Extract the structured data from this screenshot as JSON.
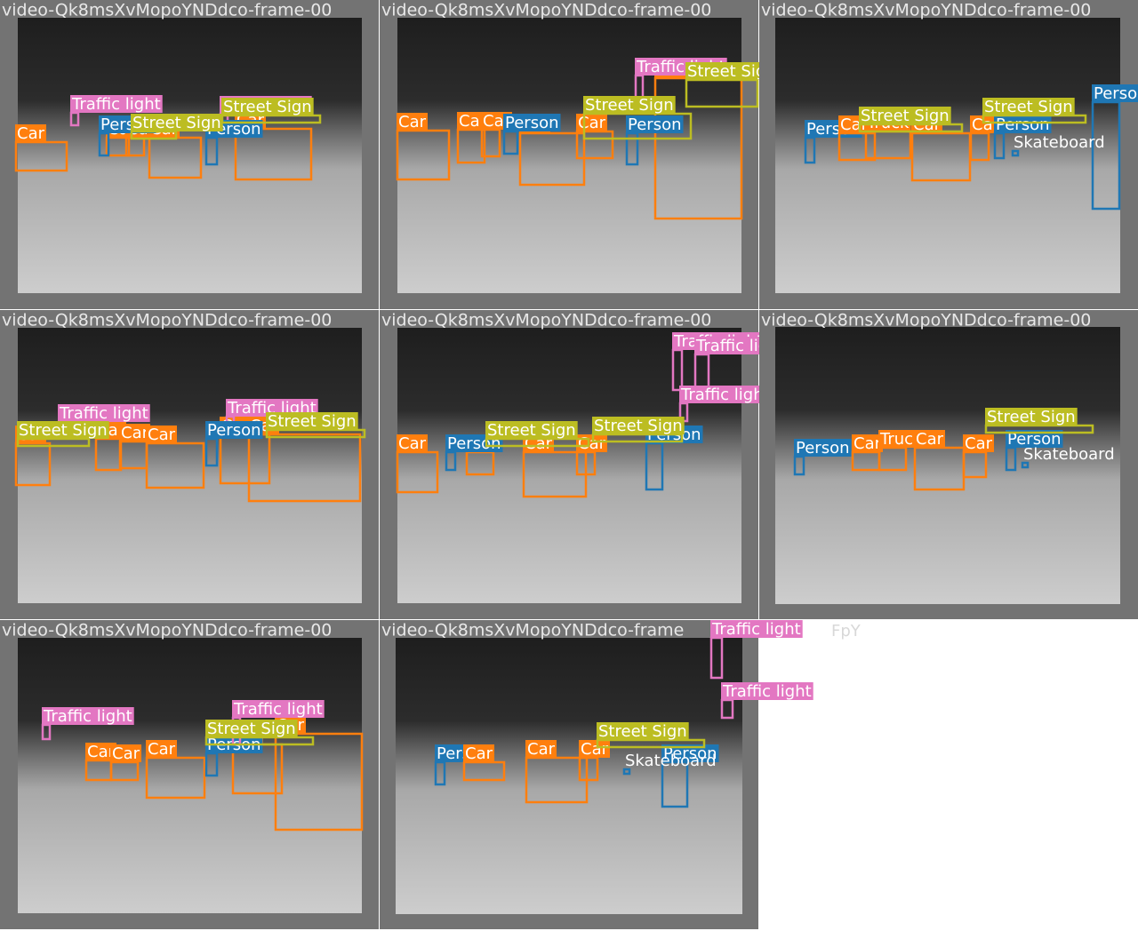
{
  "classes": {
    "Car": "#ff7f0e",
    "Truck": "#ff7f0e",
    "Person": "#1f77b4",
    "Traffic light": "#e377c2",
    "Street Sign": "#bcbd22",
    "Skateboard": "#ffffff"
  },
  "tiles": [
    {
      "title": "video-Qk8msXvMopoYNDdco-frame-00",
      "detections": [
        "Traffic light",
        "Traffic light",
        "Car",
        "Car",
        "Car",
        "Car",
        "Car",
        "Person",
        "Person",
        "Street Sign",
        "Street Sign"
      ]
    },
    {
      "title": "video-Qk8msXvMopoYNDdco-frame-00",
      "detections": [
        "Car",
        "Car",
        "Car",
        "Car",
        "Car",
        "Car",
        "Person",
        "Person",
        "Traffic light",
        "Street Sign",
        "Street Sign"
      ]
    },
    {
      "title": "video-Qk8msXvMopoYNDdco-frame-00",
      "detections": [
        "Person",
        "Car",
        "Car",
        "Car",
        "Truck",
        "Person",
        "Person",
        "Skateboard",
        "Street Sign",
        "Street Sign"
      ]
    },
    {
      "title": "video-Qk8msXvMopoYNDdco-frame-00",
      "detections": [
        "Car",
        "Car",
        "Car",
        "Car",
        "Car",
        "Car",
        "Traffic light",
        "Traffic light",
        "Person",
        "Street Sign",
        "Street Sign"
      ]
    },
    {
      "title": "video-Qk8msXvMopoYNDdco-frame-00",
      "detections": [
        "Car",
        "Car",
        "Car",
        "Car",
        "Person",
        "Person",
        "Traffic light",
        "Traffic light",
        "Traffic light",
        "Street Sign",
        "Street Sign"
      ]
    },
    {
      "title": "video-Qk8msXvMopoYNDdco-frame-00",
      "detections": [
        "Person",
        "Car",
        "Truck",
        "Car",
        "Car",
        "Person",
        "Skateboard",
        "Street Sign"
      ]
    },
    {
      "title": "video-Qk8msXvMopoYNDdco-frame-00",
      "detections": [
        "Traffic light",
        "Car",
        "Car",
        "Car",
        "Car",
        "Car",
        "Person",
        "Traffic light",
        "Street Sign"
      ]
    },
    {
      "title": "video-Qk8msXvMopoYNDdco-frame",
      "detections": [
        "Person",
        "Car",
        "Car",
        "Car",
        "Person",
        "Traffic light",
        "Traffic light",
        "Street Sign",
        "Skateboard"
      ]
    }
  ],
  "fragment": "FpY"
}
